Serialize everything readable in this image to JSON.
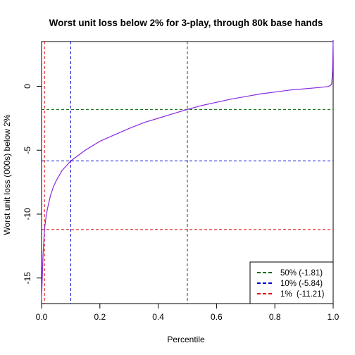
{
  "chart_data": {
    "type": "line",
    "title": "Worst unit loss below 2% for 3-play, through 80k base hands",
    "xlabel": "Percentile",
    "ylabel": "Worst unit loss (000s) below 2%",
    "xlim": [
      0,
      1
    ],
    "ylim": [
      -17,
      3.5
    ],
    "x_ticks": [
      0.0,
      0.2,
      0.4,
      0.6,
      0.8,
      1.0
    ],
    "x_tick_labels": [
      "0.0",
      "0.2",
      "0.4",
      "0.6",
      "0.8",
      "1.0"
    ],
    "y_ticks": [
      -15,
      -10,
      -5,
      0
    ],
    "y_tick_labels": [
      "-15",
      "-10",
      "-5",
      "0"
    ],
    "grid": false,
    "legend_position": "bottom-right",
    "series": [
      {
        "color": "#8a2be2",
        "x": [
          0.0,
          0.002,
          0.005,
          0.01,
          0.015,
          0.02,
          0.03,
          0.04,
          0.05,
          0.07,
          0.1,
          0.15,
          0.2,
          0.25,
          0.3,
          0.35,
          0.4,
          0.45,
          0.5,
          0.55,
          0.6,
          0.65,
          0.7,
          0.75,
          0.8,
          0.85,
          0.9,
          0.95,
          0.98,
          0.99,
          0.995,
          0.998,
          1.0
        ],
        "y": [
          -16.7,
          -15.3,
          -13.2,
          -11.2,
          -10.3,
          -9.6,
          -8.6,
          -7.9,
          -7.4,
          -6.6,
          -5.84,
          -5.0,
          -4.3,
          -3.8,
          -3.3,
          -2.85,
          -2.5,
          -2.15,
          -1.81,
          -1.5,
          -1.25,
          -1.0,
          -0.8,
          -0.6,
          -0.45,
          -0.3,
          -0.2,
          -0.1,
          -0.03,
          0.05,
          0.2,
          1.2,
          3.6
        ]
      }
    ],
    "reference_lines": {
      "vertical": [
        {
          "x": 0.5,
          "color": "#006400"
        },
        {
          "x": 0.1,
          "color": "#0000cd"
        },
        {
          "x": 0.01,
          "color": "#dd0000"
        }
      ],
      "horizontal": [
        {
          "y": -1.81,
          "color": "#006400"
        },
        {
          "y": -5.84,
          "color": "#0000cd"
        },
        {
          "y": -11.21,
          "color": "#dd0000"
        }
      ]
    },
    "legend": [
      {
        "label": "50% (-1.81)",
        "color": "#006400"
      },
      {
        "label": "10% (-5.84)",
        "color": "#0000cd"
      },
      {
        "label": "1%  (-11.21)",
        "color": "#dd0000"
      }
    ]
  }
}
